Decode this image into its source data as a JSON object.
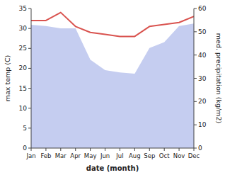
{
  "chart_data": {
    "type": "line",
    "categories": [
      "Jan",
      "Feb",
      "Mar",
      "Apr",
      "May",
      "Jun",
      "Jul",
      "Aug",
      "Sep",
      "Oct",
      "Nov",
      "Dec"
    ],
    "xlabel": "date (month)",
    "ylabel": "max temp (C)",
    "y2label": "med. precipitation (kg/m2)",
    "series": [
      {
        "type": "area",
        "color": "#c5cdf0",
        "axis": "y2",
        "values": [
          53.0,
          52.5,
          51.5,
          51.5,
          38.0,
          33.5,
          32.5,
          32.0,
          43.0,
          45.5,
          52.5,
          53.5
        ]
      },
      {
        "type": "line",
        "color": "#d9534f",
        "values": [
          32.0,
          32.0,
          34.0,
          30.5,
          29.0,
          28.5,
          28.0,
          28.0,
          30.5,
          31.0,
          31.5,
          33.0
        ]
      }
    ],
    "ylim": [
      0,
      35
    ],
    "yticks": [
      0,
      5,
      10,
      15,
      20,
      25,
      30,
      35
    ],
    "y2lim": [
      0,
      60
    ],
    "y2ticks": [
      0,
      10,
      20,
      30,
      40,
      50,
      60
    ]
  }
}
